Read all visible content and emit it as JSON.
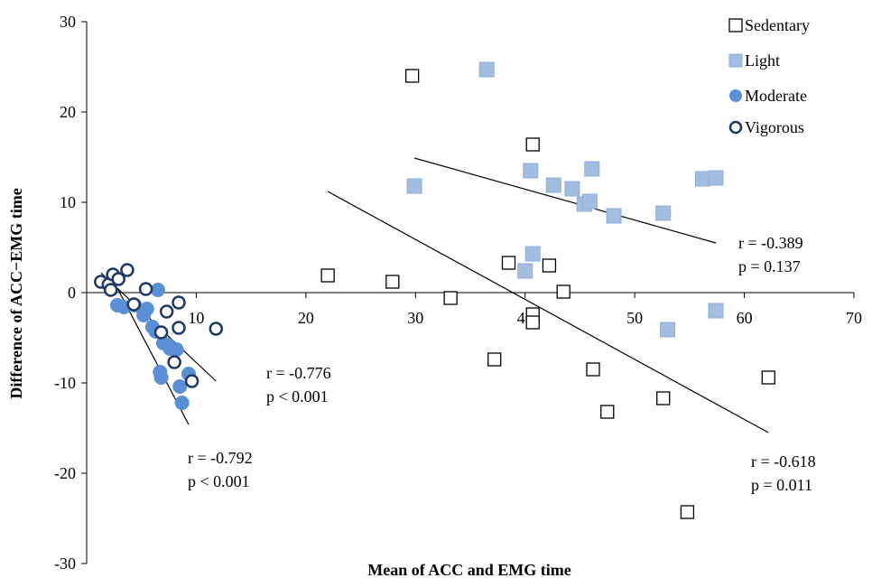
{
  "chart_data": {
    "type": "scatter",
    "xlabel": "Mean of ACC and EMG time",
    "ylabel": "Difference of ACC−EMG time",
    "xlim": [
      0,
      70
    ],
    "ylim": [
      -30,
      30
    ],
    "xticks": [
      0,
      10,
      20,
      30,
      40,
      50,
      60,
      70
    ],
    "yticks": [
      -30,
      -20,
      -10,
      0,
      10,
      20,
      30
    ],
    "x_tick_labels": [
      "10",
      "20",
      "30",
      "40",
      "50",
      "60",
      "70"
    ],
    "y_tick_labels": [
      "-30",
      "-20",
      "-10",
      "0",
      "10",
      "20",
      "30"
    ],
    "grid": false,
    "legend_position": "top-right",
    "colors": {
      "light": "#a3bde0",
      "light_edge": "#8faed8",
      "moderate": "#5a8fd6",
      "vigorous_edge": "#1f3864"
    },
    "series": [
      {
        "name": "Sedentary",
        "marker": "square-open",
        "points": [
          [
            22.0,
            1.9
          ],
          [
            27.9,
            1.2
          ],
          [
            29.7,
            24.0
          ],
          [
            33.2,
            -0.6
          ],
          [
            37.2,
            -7.4
          ],
          [
            38.5,
            3.3
          ],
          [
            40.7,
            16.4
          ],
          [
            40.7,
            -2.4
          ],
          [
            40.7,
            -3.3
          ],
          [
            42.2,
            3.0
          ],
          [
            43.5,
            0.1
          ],
          [
            46.2,
            -8.5
          ],
          [
            47.5,
            -13.2
          ],
          [
            52.6,
            -11.7
          ],
          [
            54.8,
            -24.3
          ],
          [
            62.2,
            -9.4
          ]
        ]
      },
      {
        "name": "Light",
        "marker": "square-filled",
        "points": [
          [
            29.9,
            11.8
          ],
          [
            36.5,
            24.7
          ],
          [
            40.0,
            2.4
          ],
          [
            40.5,
            13.5
          ],
          [
            40.7,
            4.3
          ],
          [
            42.6,
            11.9
          ],
          [
            44.3,
            11.5
          ],
          [
            45.4,
            9.8
          ],
          [
            45.9,
            10.1
          ],
          [
            46.1,
            13.7
          ],
          [
            48.1,
            8.5
          ],
          [
            52.6,
            8.8
          ],
          [
            53.0,
            -4.1
          ],
          [
            56.2,
            12.6
          ],
          [
            57.4,
            12.7
          ],
          [
            57.4,
            -2.0
          ]
        ]
      },
      {
        "name": "Moderate",
        "marker": "circle-filled",
        "points": [
          [
            2.8,
            -1.4
          ],
          [
            3.4,
            -1.6
          ],
          [
            4.4,
            -1.4
          ],
          [
            5.2,
            -2.5
          ],
          [
            5.5,
            -1.8
          ],
          [
            6.0,
            -3.8
          ],
          [
            6.3,
            -4.3
          ],
          [
            6.5,
            0.3
          ],
          [
            6.7,
            -8.8
          ],
          [
            6.8,
            -9.4
          ],
          [
            7.0,
            -5.6
          ],
          [
            7.4,
            -5.8
          ],
          [
            7.6,
            -6.2
          ],
          [
            8.2,
            -6.3
          ],
          [
            8.5,
            -10.4
          ],
          [
            8.7,
            -12.2
          ],
          [
            9.3,
            -9.0
          ]
        ]
      },
      {
        "name": "Vigorous",
        "marker": "circle-open",
        "points": [
          [
            1.3,
            1.2
          ],
          [
            2.0,
            0.9
          ],
          [
            2.2,
            0.3
          ],
          [
            2.4,
            2.0
          ],
          [
            2.9,
            1.5
          ],
          [
            3.7,
            2.5
          ],
          [
            4.3,
            -1.3
          ],
          [
            5.4,
            0.4
          ],
          [
            6.8,
            -4.4
          ],
          [
            7.3,
            -2.1
          ],
          [
            8.0,
            -7.7
          ],
          [
            8.4,
            -1.1
          ],
          [
            8.4,
            -3.9
          ],
          [
            9.6,
            -9.8
          ],
          [
            11.8,
            -4.0
          ]
        ]
      }
    ],
    "trendlines": [
      {
        "name": "Sedentary",
        "from": [
          22.0,
          11.2
        ],
        "to": [
          62.2,
          -15.5
        ]
      },
      {
        "name": "Light",
        "from": [
          29.9,
          14.9
        ],
        "to": [
          57.4,
          5.5
        ]
      },
      {
        "name": "Moderate",
        "from": [
          2.8,
          0.5
        ],
        "to": [
          9.3,
          -14.6
        ]
      },
      {
        "name": "Vigorous",
        "from": [
          1.3,
          2.2
        ],
        "to": [
          11.8,
          -9.8
        ]
      }
    ],
    "annotations": [
      {
        "id": "light",
        "lines": [
          "r = -0.389",
          "p = 0.137"
        ]
      },
      {
        "id": "sedentary",
        "lines": [
          "r = -0.618",
          "p = 0.011"
        ]
      },
      {
        "id": "vigorous",
        "lines": [
          "r = -0.776",
          "p < 0.001"
        ]
      },
      {
        "id": "moderate",
        "lines": [
          "r = -0.792",
          "p < 0.001"
        ]
      }
    ]
  }
}
